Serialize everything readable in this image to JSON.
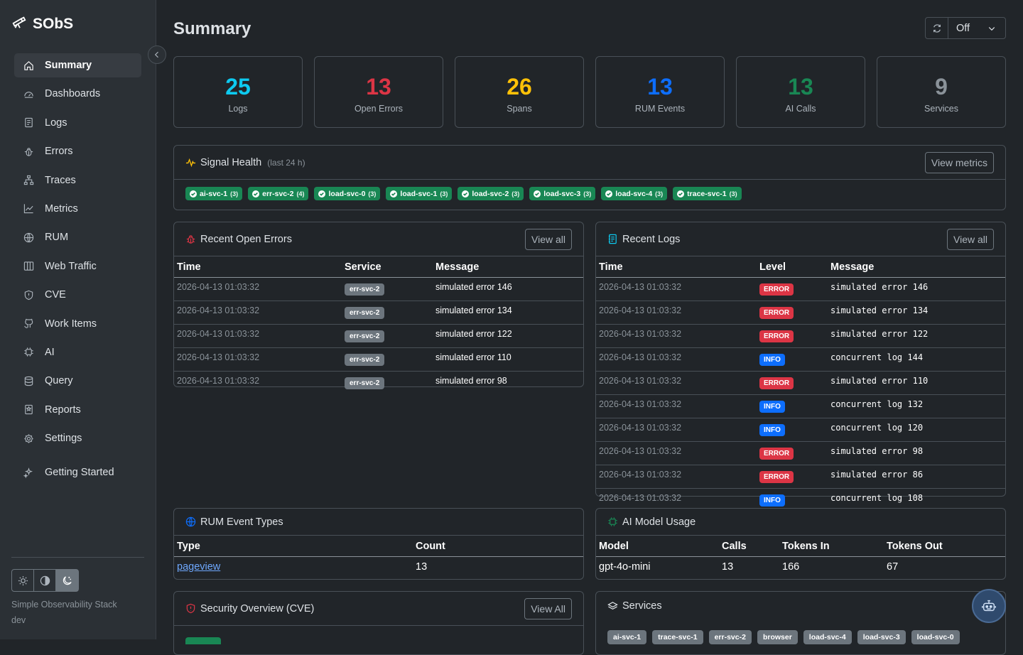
{
  "app": {
    "name": "SObS",
    "tagline": "Simple Observability Stack",
    "env": "dev"
  },
  "nav": [
    {
      "label": "Summary",
      "icon": "home-icon",
      "active": true
    },
    {
      "label": "Dashboards",
      "icon": "dashboard-gauge-icon"
    },
    {
      "label": "Logs",
      "icon": "journal-icon"
    },
    {
      "label": "Errors",
      "icon": "bug-icon"
    },
    {
      "label": "Traces",
      "icon": "diagram-icon"
    },
    {
      "label": "Metrics",
      "icon": "graph-up-icon"
    },
    {
      "label": "RUM",
      "icon": "globe-icon"
    },
    {
      "label": "Web Traffic",
      "icon": "columns-icon"
    },
    {
      "label": "CVE",
      "icon": "shield-icon"
    },
    {
      "label": "Work Items",
      "icon": "github-icon"
    },
    {
      "label": "AI",
      "icon": "cpu-icon"
    },
    {
      "label": "Query",
      "icon": "database-icon"
    },
    {
      "label": "Reports",
      "icon": "report-icon"
    },
    {
      "label": "Settings",
      "icon": "gear-icon"
    },
    {
      "label": "Getting Started",
      "icon": "sparkles-icon"
    }
  ],
  "header": {
    "title": "Summary",
    "refresh_value": "Off"
  },
  "stats": [
    {
      "value": "25",
      "label": "Logs",
      "color": "#0dcaf0"
    },
    {
      "value": "13",
      "label": "Open Errors",
      "color": "#dc3545"
    },
    {
      "value": "26",
      "label": "Spans",
      "color": "#ffc107"
    },
    {
      "value": "13",
      "label": "RUM Events",
      "color": "#0d6efd"
    },
    {
      "value": "13",
      "label": "AI Calls",
      "color": "#198754"
    },
    {
      "value": "9",
      "label": "Services",
      "color": "#8a9299"
    }
  ],
  "signal_health": {
    "title": "Signal Health",
    "subtitle": "(last 24 h)",
    "button": "View metrics",
    "services": [
      {
        "name": "ai-svc-1",
        "count": "(3)"
      },
      {
        "name": "err-svc-2",
        "count": "(4)"
      },
      {
        "name": "load-svc-0",
        "count": "(3)"
      },
      {
        "name": "load-svc-1",
        "count": "(3)"
      },
      {
        "name": "load-svc-2",
        "count": "(3)"
      },
      {
        "name": "load-svc-3",
        "count": "(3)"
      },
      {
        "name": "load-svc-4",
        "count": "(3)"
      },
      {
        "name": "trace-svc-1",
        "count": "(3)"
      }
    ]
  },
  "open_errors": {
    "title": "Recent Open Errors",
    "button": "View all",
    "columns": [
      "Time",
      "Service",
      "Message"
    ],
    "rows": [
      {
        "time": "2026-04-13 01:03:32",
        "service": "err-svc-2",
        "message": "simulated error 146"
      },
      {
        "time": "2026-04-13 01:03:32",
        "service": "err-svc-2",
        "message": "simulated error 134"
      },
      {
        "time": "2026-04-13 01:03:32",
        "service": "err-svc-2",
        "message": "simulated error 122"
      },
      {
        "time": "2026-04-13 01:03:32",
        "service": "err-svc-2",
        "message": "simulated error 110"
      },
      {
        "time": "2026-04-13 01:03:32",
        "service": "err-svc-2",
        "message": "simulated error 98"
      }
    ]
  },
  "recent_logs": {
    "title": "Recent Logs",
    "button": "View all",
    "columns": [
      "Time",
      "Level",
      "Message"
    ],
    "rows": [
      {
        "time": "2026-04-13 01:03:32",
        "level": "ERROR",
        "message": "simulated error 146"
      },
      {
        "time": "2026-04-13 01:03:32",
        "level": "ERROR",
        "message": "simulated error 134"
      },
      {
        "time": "2026-04-13 01:03:32",
        "level": "ERROR",
        "message": "simulated error 122"
      },
      {
        "time": "2026-04-13 01:03:32",
        "level": "INFO",
        "message": "concurrent log 144"
      },
      {
        "time": "2026-04-13 01:03:32",
        "level": "ERROR",
        "message": "simulated error 110"
      },
      {
        "time": "2026-04-13 01:03:32",
        "level": "INFO",
        "message": "concurrent log 132"
      },
      {
        "time": "2026-04-13 01:03:32",
        "level": "INFO",
        "message": "concurrent log 120"
      },
      {
        "time": "2026-04-13 01:03:32",
        "level": "ERROR",
        "message": "simulated error 98"
      },
      {
        "time": "2026-04-13 01:03:32",
        "level": "ERROR",
        "message": "simulated error 86"
      },
      {
        "time": "2026-04-13 01:03:32",
        "level": "INFO",
        "message": "concurrent log 108"
      }
    ]
  },
  "rum": {
    "title": "RUM Event Types",
    "columns": [
      "Type",
      "Count"
    ],
    "rows": [
      {
        "type": "pageview",
        "count": "13"
      }
    ]
  },
  "ai_usage": {
    "title": "AI Model Usage",
    "columns": [
      "Model",
      "Calls",
      "Tokens In",
      "Tokens Out"
    ],
    "rows": [
      {
        "model": "gpt-4o-mini",
        "calls": "13",
        "tokens_in": "166",
        "tokens_out": "67"
      }
    ]
  },
  "security": {
    "title": "Security Overview (CVE)",
    "button": "View All"
  },
  "services_card": {
    "title": "Services",
    "tags": [
      "ai-svc-1",
      "trace-svc-1",
      "err-svc-2",
      "browser",
      "load-svc-4",
      "load-svc-3",
      "load-svc-0"
    ]
  }
}
